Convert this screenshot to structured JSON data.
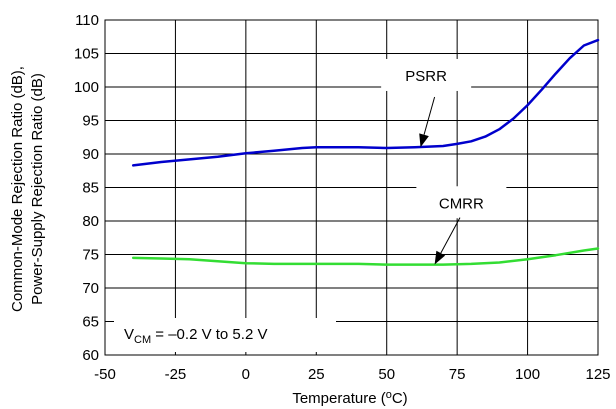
{
  "chart_data": {
    "type": "line",
    "xlabel": "Temperature (",
    "xlabel_sup": "o",
    "xlabel_end": "C)",
    "ylabel_line1": "Common-Mode Rejection Ratio (dB),",
    "ylabel_line2": "Power-Supply Rejection Ratio (dB)",
    "xlim": [
      -50,
      125
    ],
    "ylim": [
      60,
      110
    ],
    "x_ticks": [
      -50,
      -25,
      0,
      25,
      50,
      75,
      100,
      125
    ],
    "y_ticks": [
      60,
      65,
      70,
      75,
      80,
      85,
      90,
      95,
      100,
      105,
      110
    ],
    "grid": true,
    "series": [
      {
        "name": "PSRR",
        "color": "#0000cc",
        "x": [
          -40,
          -30,
          -20,
          -10,
          0,
          10,
          20,
          25,
          30,
          40,
          50,
          60,
          70,
          75,
          80,
          85,
          90,
          95,
          100,
          105,
          110,
          115,
          120,
          125
        ],
        "y": [
          88.3,
          88.8,
          89.2,
          89.6,
          90.1,
          90.5,
          90.9,
          91.0,
          91.0,
          91.0,
          90.9,
          91.0,
          91.2,
          91.5,
          91.9,
          92.6,
          93.7,
          95.3,
          97.3,
          99.6,
          102.0,
          104.3,
          106.2,
          107.0
        ]
      },
      {
        "name": "CMRR",
        "color": "#33dd33",
        "x": [
          -40,
          -30,
          -20,
          -10,
          0,
          10,
          20,
          30,
          40,
          50,
          60,
          70,
          80,
          90,
          100,
          110,
          120,
          125
        ],
        "y": [
          74.5,
          74.4,
          74.3,
          74.0,
          73.7,
          73.6,
          73.6,
          73.6,
          73.6,
          73.5,
          73.5,
          73.5,
          73.6,
          73.8,
          74.3,
          74.9,
          75.6,
          75.9
        ]
      }
    ],
    "annotations": [
      {
        "text": "PSRR",
        "text_at": [
          64,
          101.2
        ],
        "arrow_from": [
          67,
          98.5
        ],
        "arrow_to": [
          62,
          91.0
        ]
      },
      {
        "text": "CMRR",
        "text_at": [
          76.5,
          82.2
        ],
        "arrow_from": [
          76,
          80.5
        ],
        "arrow_to": [
          67,
          73.5
        ]
      }
    ],
    "condition": {
      "prefix": "V",
      "sub": "CM",
      "rest": " = –0.2 V to 5.2 V"
    }
  }
}
